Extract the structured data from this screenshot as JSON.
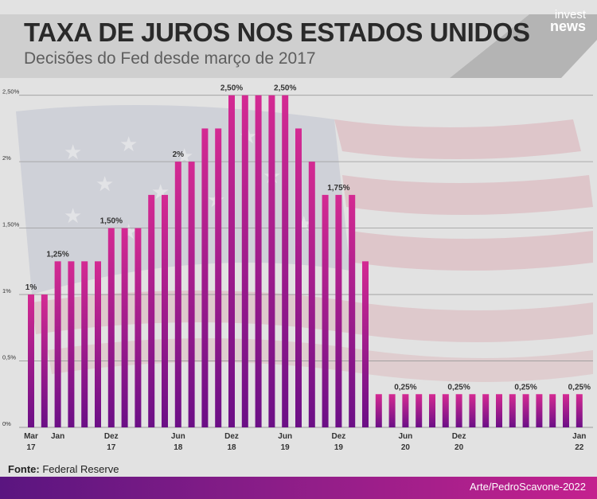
{
  "header": {
    "title": "TAXA DE JUROS NOS ESTADOS UNIDOS",
    "subtitle": "Decisões do Fed desde março de 2017"
  },
  "brand": {
    "line1": "invest",
    "line2": "news"
  },
  "footer": {
    "source_label": "Fonte:",
    "source_value": "Federal Reserve",
    "credit": "Arte/PedroScavone-2022"
  },
  "colors": {
    "bar_top": "#d42a92",
    "bar_bottom": "#6b0f86",
    "gridline": "#9a9a9a",
    "banner": "#cfcfcf"
  },
  "chart_data": {
    "type": "bar",
    "ylim": [
      0,
      2.6
    ],
    "yticks": [
      {
        "value": 0,
        "label": "0%"
      },
      {
        "value": 0.5,
        "label": "0,5%"
      },
      {
        "value": 1.0,
        "label": "1%"
      },
      {
        "value": 1.5,
        "label": "1,50%"
      },
      {
        "value": 2.0,
        "label": "2%"
      },
      {
        "value": 2.5,
        "label": "2,50%"
      }
    ],
    "values": [
      1.0,
      1.0,
      1.25,
      1.25,
      1.25,
      1.25,
      1.5,
      1.5,
      1.5,
      1.75,
      1.75,
      2.0,
      2.0,
      2.25,
      2.25,
      2.5,
      2.5,
      2.5,
      2.5,
      2.5,
      2.25,
      2.0,
      1.75,
      1.75,
      1.75,
      1.25,
      0.25,
      0.25,
      0.25,
      0.25,
      0.25,
      0.25,
      0.25,
      0.25,
      0.25,
      0.25,
      0.25,
      0.25,
      0.25,
      0.25,
      0.25,
      0.25
    ],
    "data_labels": [
      {
        "index": 0,
        "text": "1%"
      },
      {
        "index": 2,
        "text": "1,25%"
      },
      {
        "index": 6,
        "text": "1,50%"
      },
      {
        "index": 11,
        "text": "2%"
      },
      {
        "index": 15,
        "text": "2,50%"
      },
      {
        "index": 19,
        "text": "2,50%"
      },
      {
        "index": 23,
        "text": "1,75%"
      },
      {
        "index": 28,
        "text": "0,25%"
      },
      {
        "index": 32,
        "text": "0,25%"
      },
      {
        "index": 37,
        "text": "0,25%"
      },
      {
        "index": 41,
        "text": "0,25%"
      }
    ],
    "x_labels": [
      {
        "index": 0,
        "line1": "Mar",
        "line2": "17"
      },
      {
        "index": 2,
        "line1": "Jan",
        "line2": ""
      },
      {
        "index": 6,
        "line1": "Dez",
        "line2": "17"
      },
      {
        "index": 11,
        "line1": "Jun",
        "line2": "18"
      },
      {
        "index": 15,
        "line1": "Dez",
        "line2": "18"
      },
      {
        "index": 19,
        "line1": "Jun",
        "line2": "19"
      },
      {
        "index": 23,
        "line1": "Dez",
        "line2": "19"
      },
      {
        "index": 28,
        "line1": "Jun",
        "line2": "20"
      },
      {
        "index": 32,
        "line1": "Dez",
        "line2": "20"
      },
      {
        "index": 41,
        "line1": "Jan",
        "line2": "22"
      }
    ]
  }
}
